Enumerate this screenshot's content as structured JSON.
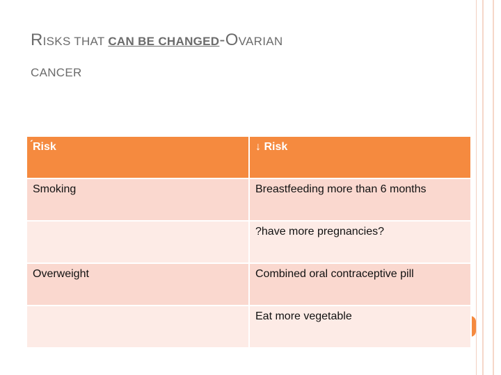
{
  "title": {
    "r1": "R",
    "isks_that": "ISKS THAT ",
    "can_be_changed": "CAN BE CHANGED",
    "dash": "-",
    "o": "O",
    "varian": "VARIAN",
    "line2": "CANCER"
  },
  "table": {
    "header": {
      "left": "́Risk",
      "right": "↓ Risk"
    },
    "rows": [
      {
        "left": "Smoking",
        "right": "Breastfeeding more than 6 months"
      },
      {
        "left": "",
        "right": "?have more pregnancies?"
      },
      {
        "left": "Overweight",
        "right": "Combined oral contraceptive pill"
      },
      {
        "left": "",
        "right": "Eat more vegetable"
      }
    ]
  },
  "colors": {
    "accent": "#f58a3f",
    "row_dark": "#fad8cf",
    "row_light": "#fdebe6"
  }
}
